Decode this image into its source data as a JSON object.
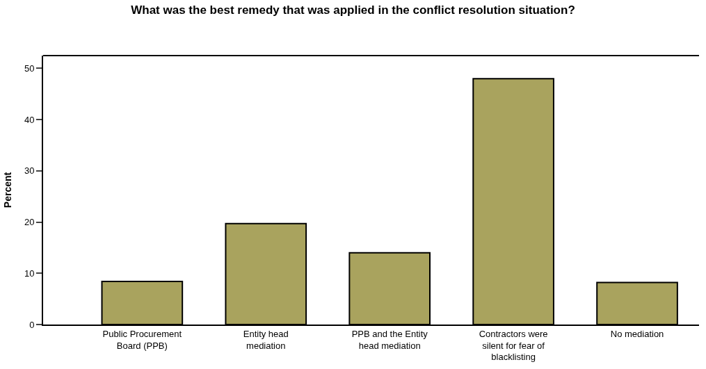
{
  "chart_data": {
    "type": "bar",
    "title": "What was the best remedy that was applied in the conflict resolution situation?",
    "ylabel": "Percent",
    "categories": [
      "Public Procurement Board (PPB)",
      "Entity head mediation",
      "PPB and the Entity head mediation",
      "Contractors were silent for fear of blacklisting",
      "No mediation"
    ],
    "values": [
      8.4,
      19.7,
      14.0,
      48.0,
      8.2
    ],
    "color": "#a9a35e",
    "ylim": [
      0,
      52.5
    ],
    "yticks": [
      0,
      10,
      20,
      30,
      40,
      50
    ],
    "legend": false
  }
}
